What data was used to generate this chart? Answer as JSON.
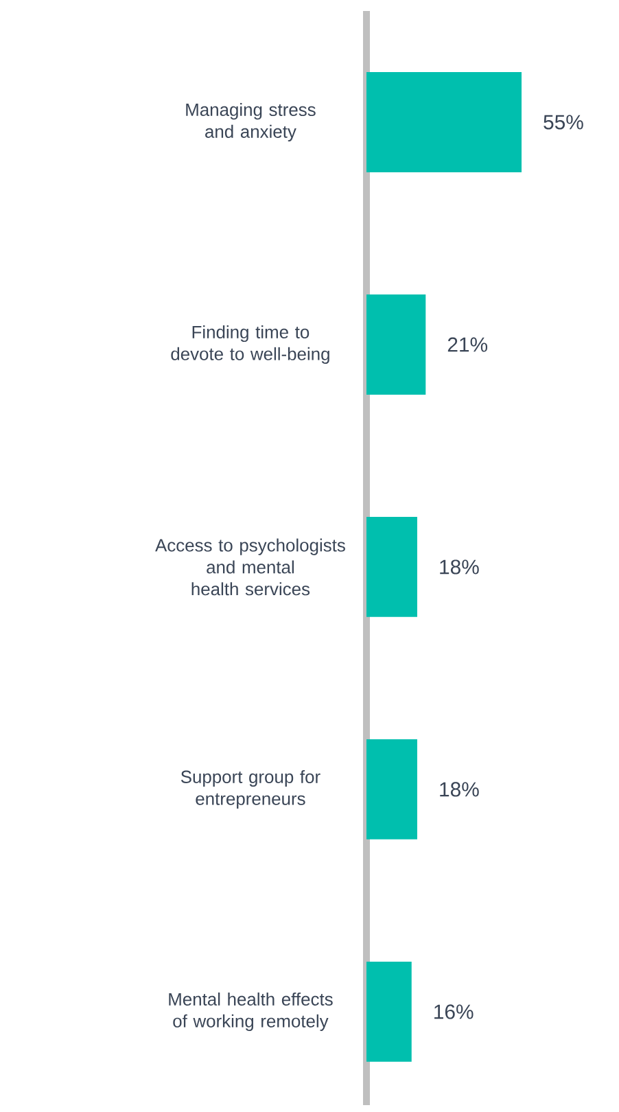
{
  "chart_data": {
    "type": "bar",
    "orientation": "horizontal",
    "color": "#00bfae",
    "categories": [
      "Managing stress and anxiety",
      "Finding time to devote to well-being",
      "Access to psychologists and mental health services",
      "Support group for entrepreneurs",
      "Mental health effects of working remotely"
    ],
    "values": [
      55,
      21,
      18,
      18,
      16
    ],
    "value_labels": [
      "55%",
      "21%",
      "18%",
      "18%",
      "16%"
    ]
  }
}
